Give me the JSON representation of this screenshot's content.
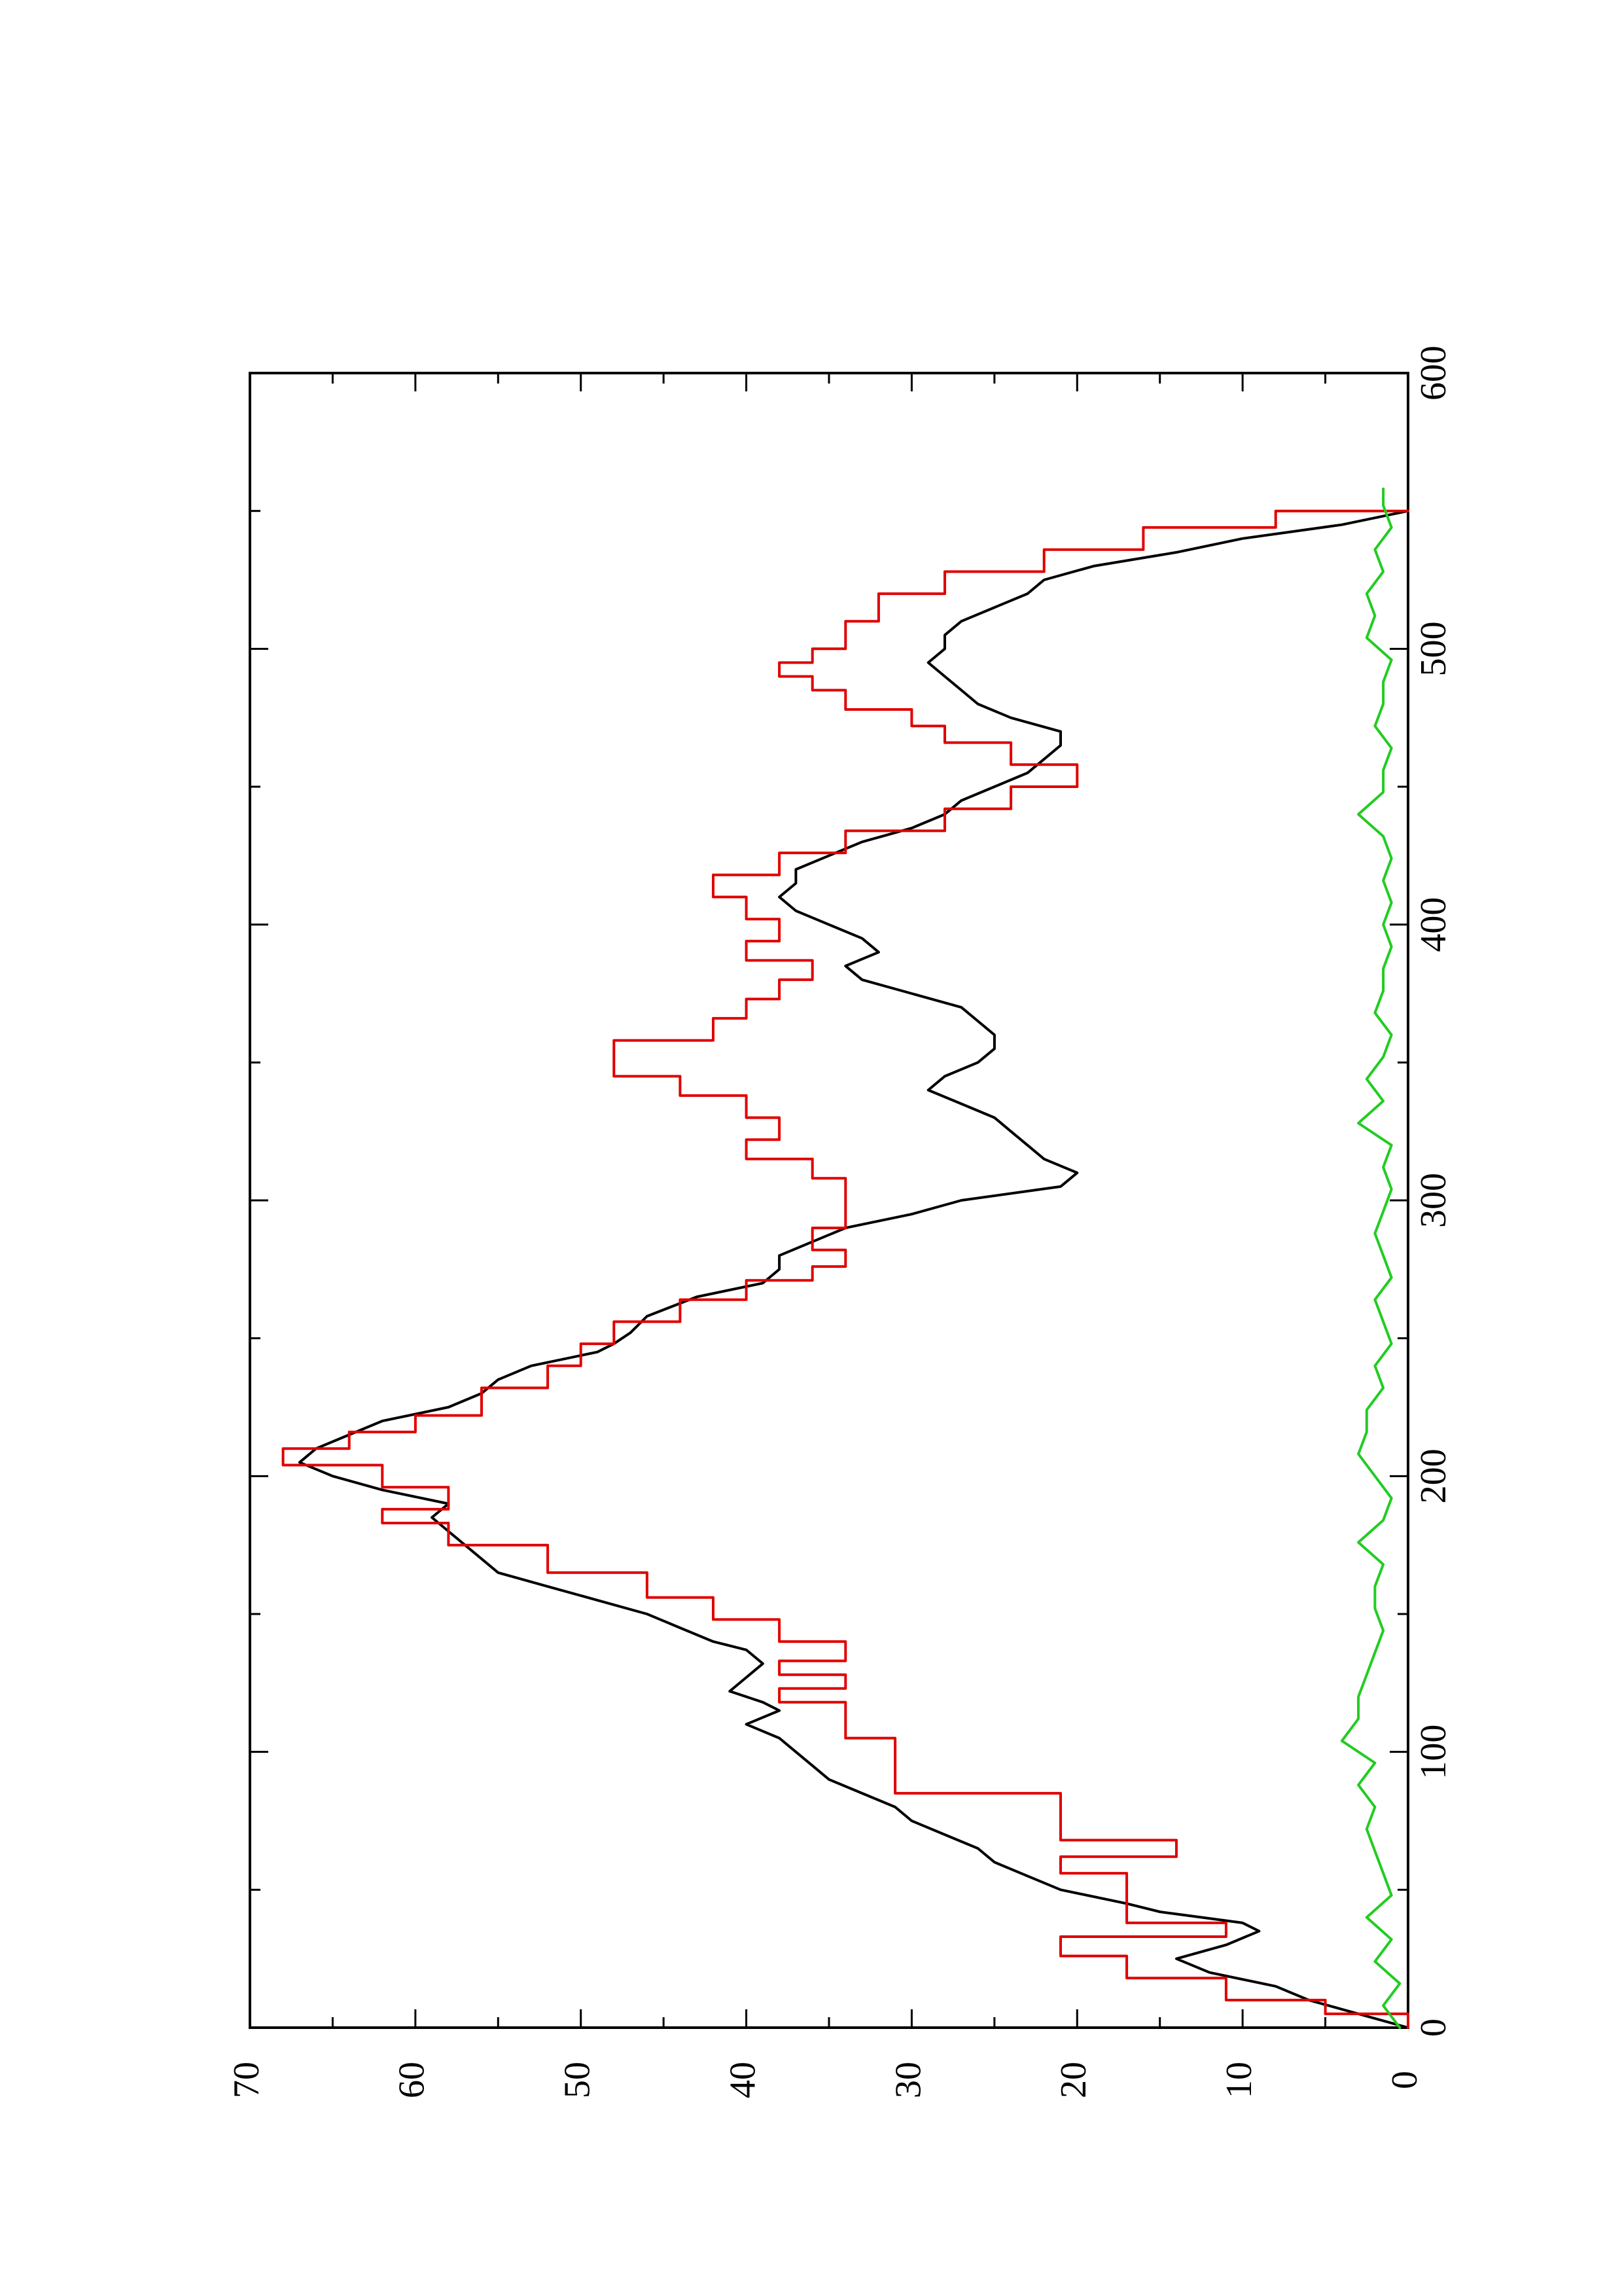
{
  "chart_data": {
    "type": "line",
    "orientation": "rotated-90-ccw",
    "title": "",
    "xlabel": "",
    "ylabel": "",
    "xlim": [
      0,
      600
    ],
    "ylim": [
      0,
      70
    ],
    "x_ticks": [
      0,
      100,
      200,
      300,
      400,
      500,
      600
    ],
    "x_minor_ticks": [
      50,
      150,
      250,
      350,
      450,
      550
    ],
    "y_ticks": [
      0,
      10,
      20,
      30,
      40,
      50,
      60,
      70
    ],
    "y_minor_ticks": [
      5,
      15,
      25,
      35,
      45,
      55,
      65
    ],
    "x_tick_labels": [
      "0",
      "100",
      "200",
      "300",
      "400",
      "500",
      "600"
    ],
    "y_tick_labels": [
      "0",
      "10",
      "20",
      "30",
      "40",
      "50",
      "60",
      "70"
    ],
    "grid": false,
    "legend": "none",
    "series": [
      {
        "color": "#000000",
        "style": "smooth",
        "x": [
          0,
          5,
          10,
          15,
          20,
          25,
          30,
          35,
          38,
          42,
          45,
          50,
          55,
          60,
          65,
          70,
          75,
          80,
          85,
          90,
          95,
          100,
          105,
          110,
          115,
          118,
          122,
          127,
          132,
          137,
          140,
          145,
          150,
          155,
          160,
          165,
          170,
          175,
          180,
          185,
          190,
          195,
          200,
          205,
          210,
          215,
          220,
          225,
          230,
          235,
          240,
          245,
          248,
          252,
          258,
          265,
          270,
          275,
          280,
          285,
          290,
          295,
          300,
          305,
          310,
          315,
          320,
          325,
          330,
          335,
          340,
          345,
          350,
          355,
          360,
          365,
          370,
          375,
          380,
          385,
          390,
          395,
          400,
          405,
          410,
          415,
          420,
          425,
          430,
          435,
          440,
          445,
          450,
          455,
          460,
          465,
          470,
          475,
          480,
          485,
          490,
          495,
          500,
          505,
          510,
          515,
          520,
          525,
          530,
          535,
          540,
          545,
          550
        ],
        "y": [
          0,
          3,
          6,
          8,
          12,
          14,
          11,
          9,
          10,
          15,
          17,
          21,
          23,
          25,
          26,
          28,
          30,
          31,
          33,
          35,
          36,
          37,
          38,
          40,
          38,
          39,
          41,
          40,
          39,
          40,
          42,
          44,
          46,
          49,
          52,
          55,
          56,
          57,
          58,
          59,
          58,
          62,
          65,
          67,
          66,
          64,
          62,
          58,
          56,
          55,
          53,
          49,
          48,
          47,
          46,
          43,
          39,
          38,
          38,
          36,
          34,
          30,
          27,
          21,
          20,
          22,
          23,
          24,
          25,
          27,
          29,
          28,
          26,
          25,
          25,
          26,
          27,
          30,
          33,
          34,
          32,
          33,
          35,
          37,
          38,
          37,
          37,
          35,
          33,
          30,
          28,
          27,
          25,
          23,
          22,
          21,
          21,
          24,
          26,
          27,
          28,
          29,
          28,
          28,
          27,
          25,
          23,
          22,
          19,
          14,
          10,
          4,
          0
        ]
      },
      {
        "color": "#e00000",
        "style": "steps",
        "x": [
          0,
          5,
          10,
          18,
          26,
          33,
          38,
          47,
          56,
          62,
          68,
          78,
          85,
          95,
          105,
          112,
          118,
          123,
          128,
          133,
          140,
          148,
          156,
          165,
          175,
          183,
          188,
          196,
          204,
          210,
          216,
          222,
          232,
          240,
          248,
          256,
          264,
          271,
          276,
          282,
          290,
          300,
          308,
          315,
          322,
          330,
          338,
          345,
          350,
          358,
          366,
          373,
          380,
          387,
          394,
          402,
          410,
          418,
          426,
          434,
          442,
          450,
          458,
          466,
          472,
          478,
          485,
          490,
          495,
          500,
          510,
          520,
          528,
          536,
          544,
          550
        ],
        "y": [
          0,
          5,
          11,
          17,
          21,
          11,
          17,
          17,
          21,
          14,
          21,
          21,
          31,
          31,
          34,
          34,
          38,
          34,
          38,
          34,
          38,
          42,
          46,
          52,
          58,
          62,
          58,
          62,
          68,
          64,
          60,
          56,
          52,
          50,
          48,
          44,
          40,
          36,
          34,
          36,
          34,
          34,
          36,
          40,
          38,
          40,
          44,
          48,
          48,
          42,
          40,
          38,
          36,
          40,
          38,
          40,
          42,
          38,
          34,
          28,
          24,
          20,
          24,
          28,
          30,
          34,
          36,
          38,
          36,
          34,
          32,
          28,
          22,
          16,
          8,
          0
        ]
      },
      {
        "color": "#22cc22",
        "style": "noise",
        "x": [
          0,
          8,
          16,
          24,
          32,
          40,
          48,
          56,
          64,
          72,
          80,
          88,
          96,
          104,
          112,
          120,
          128,
          136,
          144,
          152,
          160,
          168,
          176,
          184,
          192,
          200,
          208,
          216,
          224,
          232,
          240,
          248,
          256,
          264,
          272,
          280,
          288,
          296,
          304,
          312,
          320,
          328,
          336,
          344,
          352,
          360,
          368,
          376,
          384,
          392,
          400,
          408,
          416,
          424,
          432,
          440,
          448,
          456,
          464,
          472,
          480,
          488,
          496,
          504,
          512,
          520,
          528,
          536,
          544,
          552,
          558
        ],
        "y": [
          0.5,
          1.5,
          0.5,
          2,
          1,
          2.5,
          1,
          1.5,
          2,
          2.5,
          2,
          3,
          2,
          4,
          3,
          3,
          2.5,
          2,
          1.5,
          2,
          2,
          1.5,
          3,
          1.5,
          1,
          2,
          3,
          2.5,
          2.5,
          1.5,
          2,
          1,
          1.5,
          2,
          1,
          1.5,
          2,
          1.5,
          1,
          1.5,
          1,
          3,
          1.5,
          2.5,
          1.5,
          1,
          2,
          1.5,
          1.5,
          1,
          1.5,
          1,
          1.5,
          1,
          1.5,
          3,
          1.5,
          1.5,
          1,
          2,
          1.5,
          1.5,
          1,
          2.5,
          2,
          2.5,
          1.5,
          2,
          1,
          1.5,
          1.5
        ]
      }
    ]
  }
}
